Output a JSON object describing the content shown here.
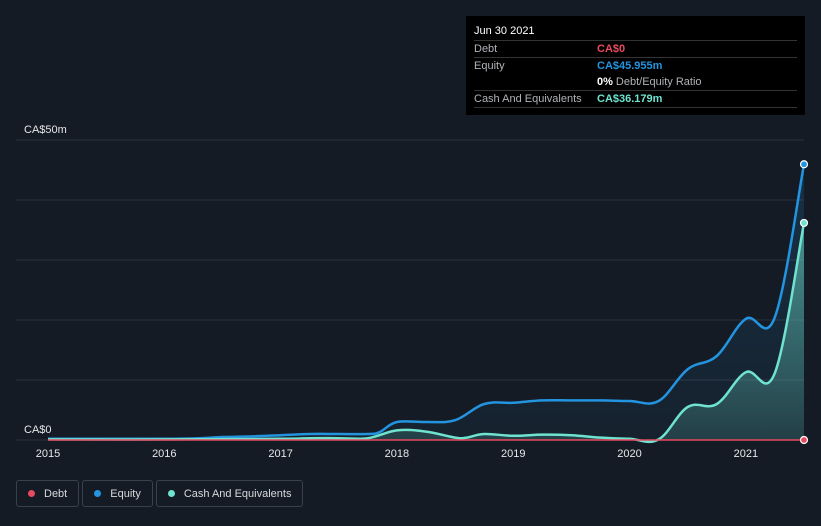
{
  "tooltip": {
    "date": "Jun 30 2021",
    "debt_label": "Debt",
    "debt_value": "CA$0",
    "equity_label": "Equity",
    "equity_value": "CA$45.955m",
    "ratio_value": "0%",
    "ratio_label": "Debt/Equity Ratio",
    "cash_label": "Cash And Equivalents",
    "cash_value": "CA$36.179m"
  },
  "legend": {
    "debt": "Debt",
    "equity": "Equity",
    "cash": "Cash And Equivalents"
  },
  "colors": {
    "debt": "#e84a5f",
    "equity": "#2394df",
    "cash": "#6fe3cf",
    "background": "#151b24"
  },
  "chart_data": {
    "type": "area",
    "title": "",
    "xlabel": "",
    "ylabel": "",
    "y_tick_labels": [
      "CA$0",
      "CA$50m"
    ],
    "x_tick_labels": [
      "2015",
      "2016",
      "2017",
      "2018",
      "2019",
      "2020",
      "2021"
    ],
    "x_ticks": [
      2015,
      2016,
      2017,
      2018,
      2019,
      2020,
      2021
    ],
    "xlim": [
      2015,
      2021.5
    ],
    "ylim": [
      0,
      50
    ],
    "series": [
      {
        "name": "Debt",
        "x": [
          2015.0,
          2021.5
        ],
        "values": [
          0,
          0
        ]
      },
      {
        "name": "Equity",
        "x": [
          2015.0,
          2015.5,
          2016.0,
          2016.3,
          2016.5,
          2016.75,
          2017.0,
          2017.25,
          2017.5,
          2017.75,
          2017.85,
          2018.0,
          2018.25,
          2018.5,
          2018.75,
          2019.0,
          2019.25,
          2019.5,
          2019.75,
          2020.0,
          2020.25,
          2020.5,
          2020.75,
          2021.0,
          2021.25,
          2021.5
        ],
        "values": [
          0.2,
          0.2,
          0.2,
          0.3,
          0.5,
          0.6,
          0.8,
          1.0,
          1.0,
          1.0,
          1.3,
          3.0,
          3.0,
          3.3,
          6.0,
          6.2,
          6.6,
          6.6,
          6.6,
          6.5,
          6.5,
          11.8,
          14.0,
          20.2,
          20.5,
          45.955
        ]
      },
      {
        "name": "Cash And Equivalents",
        "x": [
          2015.0,
          2016.0,
          2017.0,
          2017.25,
          2017.5,
          2017.75,
          2018.0,
          2018.25,
          2018.5,
          2018.6,
          2018.75,
          2019.0,
          2019.25,
          2019.5,
          2019.75,
          2020.0,
          2020.25,
          2020.5,
          2020.75,
          2021.0,
          2021.25,
          2021.5
        ],
        "values": [
          0.1,
          0.1,
          0.2,
          0.3,
          0.3,
          0.3,
          1.6,
          1.4,
          0.4,
          0.4,
          1.0,
          0.7,
          0.9,
          0.8,
          0.4,
          0.2,
          0.1,
          5.5,
          6.0,
          11.3,
          11.2,
          36.179
        ]
      }
    ],
    "legend": [
      "Debt",
      "Equity",
      "Cash And Equivalents"
    ],
    "grid": true
  }
}
